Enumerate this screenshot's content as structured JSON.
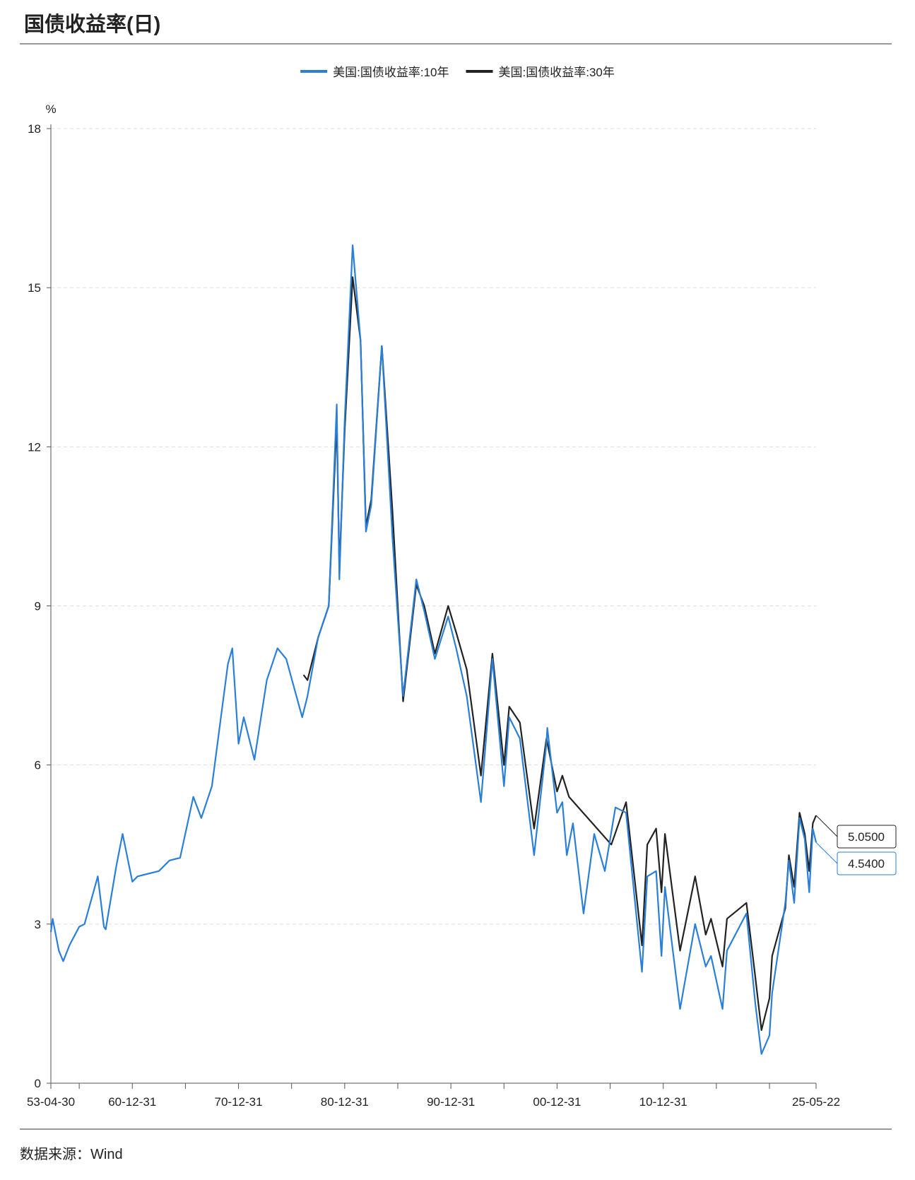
{
  "title": "国债收益率(日)",
  "source": "数据来源：Wind",
  "chart_data": {
    "type": "line",
    "y_label": "%",
    "xlim": [
      "53-04-30",
      "25-05-22"
    ],
    "ylim": [
      0,
      18
    ],
    "yticks": [
      0,
      3,
      6,
      9,
      12,
      15,
      18
    ],
    "grid": true,
    "xticks": [
      "53-04-30",
      {
        "value": "55-12-31",
        "label": null
      },
      "60-12-31",
      {
        "value": "65-12-31",
        "label": null
      },
      "70-12-31",
      {
        "value": "75-12-31",
        "label": null
      },
      "80-12-31",
      {
        "value": "85-12-31",
        "label": null
      },
      "90-12-31",
      {
        "value": "95-12-31",
        "label": null
      },
      "00-12-31",
      {
        "value": "05-12-31",
        "label": null
      },
      "10-12-31",
      {
        "value": "15-12-31",
        "label": null
      },
      {
        "value": "20-12-31",
        "label": null
      },
      "25-05-22"
    ],
    "series": [
      {
        "name": "美国:国债收益率:10年",
        "color": "#2a7fd8",
        "last_value_label": "4.5400",
        "x": [
          "53-04-30",
          "53-06-30",
          "54-01-31",
          "54-06-30",
          "55-01-31",
          "55-12-31",
          "56-06-30",
          "57-09-30",
          "58-04-30",
          "58-06-30",
          "59-06-30",
          "60-01-31",
          "60-12-31",
          "61-06-30",
          "62-06-30",
          "63-06-30",
          "64-06-30",
          "65-06-30",
          "66-09-30",
          "67-06-30",
          "68-06-30",
          "69-12-31",
          "70-05-31",
          "70-12-31",
          "71-06-30",
          "72-06-30",
          "73-08-31",
          "74-08-31",
          "75-06-30",
          "76-12-31",
          "77-06-30",
          "78-06-30",
          "79-06-30",
          "80-03-31",
          "80-06-30",
          "80-12-31",
          "81-09-30",
          "82-06-30",
          "82-12-31",
          "83-06-30",
          "84-06-30",
          "85-06-30",
          "86-06-30",
          "87-09-30",
          "88-06-30",
          "89-06-30",
          "90-09-30",
          "91-06-30",
          "92-06-30",
          "93-10-31",
          "94-11-30",
          "95-12-31",
          "96-06-30",
          "97-06-30",
          "98-10-31",
          "99-12-31",
          "00-01-31",
          "00-12-31",
          "01-06-30",
          "01-11-30",
          "02-06-30",
          "03-06-30",
          "04-06-30",
          "05-06-30",
          "06-06-30",
          "07-06-30",
          "08-12-31",
          "09-06-30",
          "10-04-30",
          "10-10-31",
          "11-02-28",
          "12-07-31",
          "13-12-31",
          "14-12-31",
          "15-06-30",
          "16-07-31",
          "16-12-31",
          "18-10-31",
          "19-08-31",
          "20-03-31",
          "20-12-31",
          "21-03-31",
          "22-06-30",
          "22-10-31",
          "23-04-30",
          "23-10-31",
          "24-04-30",
          "24-09-30",
          "25-01-31",
          "25-05-22"
        ],
        "values": [
          2.85,
          3.1,
          2.5,
          2.3,
          2.6,
          2.95,
          3.0,
          3.9,
          2.95,
          2.9,
          4.1,
          4.7,
          3.8,
          3.9,
          3.95,
          4.0,
          4.2,
          4.25,
          5.4,
          5.0,
          5.6,
          7.9,
          8.2,
          6.4,
          6.9,
          6.1,
          7.6,
          8.2,
          8.0,
          6.9,
          7.3,
          8.4,
          9.0,
          12.8,
          9.5,
          12.5,
          15.8,
          14.0,
          10.4,
          10.9,
          13.9,
          10.3,
          7.3,
          9.5,
          8.9,
          8.0,
          8.8,
          8.2,
          7.3,
          5.3,
          8.0,
          5.6,
          6.9,
          6.5,
          4.3,
          6.4,
          6.7,
          5.1,
          5.3,
          4.3,
          4.9,
          3.2,
          4.7,
          4.0,
          5.2,
          5.1,
          2.1,
          3.9,
          4.0,
          2.4,
          3.7,
          1.4,
          3.0,
          2.2,
          2.4,
          1.4,
          2.5,
          3.2,
          1.5,
          0.55,
          0.9,
          1.7,
          3.4,
          4.2,
          3.4,
          5.0,
          4.6,
          3.6,
          4.8,
          4.54
        ]
      },
      {
        "name": "美国:国债收益率:30年",
        "color": "#222222",
        "last_value_label": "5.0500",
        "x": [
          "77-02-15",
          "77-06-30",
          "78-06-30",
          "79-06-30",
          "80-03-31",
          "80-06-30",
          "80-12-31",
          "81-09-30",
          "82-06-30",
          "82-12-31",
          "83-06-30",
          "84-06-30",
          "85-06-30",
          "86-06-30",
          "87-09-30",
          "88-06-30",
          "89-06-30",
          "90-09-30",
          "91-06-30",
          "92-06-30",
          "93-10-31",
          "94-11-30",
          "95-12-31",
          "96-06-30",
          "97-06-30",
          "98-10-31",
          "99-12-31",
          "00-12-31",
          "01-06-30",
          "02-02-15",
          "06-02-09",
          "07-06-30",
          "08-12-31",
          "09-06-30",
          "10-04-30",
          "10-10-31",
          "11-02-28",
          "12-07-31",
          "13-12-31",
          "14-12-31",
          "15-06-30",
          "16-07-31",
          "16-12-31",
          "18-10-31",
          "19-08-31",
          "20-03-31",
          "20-12-31",
          "21-03-31",
          "22-06-30",
          "22-10-31",
          "23-04-30",
          "23-10-31",
          "24-04-30",
          "24-09-30",
          "25-01-31",
          "25-05-22"
        ],
        "values": [
          7.7,
          7.6,
          8.4,
          9.0,
          12.5,
          9.7,
          12.3,
          15.2,
          14.0,
          10.5,
          11.0,
          13.9,
          10.8,
          7.2,
          9.4,
          9.0,
          8.1,
          9.0,
          8.5,
          7.8,
          5.8,
          8.1,
          6.0,
          7.1,
          6.8,
          4.8,
          6.5,
          5.5,
          5.8,
          5.4,
          4.5,
          5.3,
          2.6,
          4.5,
          4.8,
          3.6,
          4.7,
          2.5,
          3.9,
          2.8,
          3.1,
          2.2,
          3.1,
          3.4,
          2.0,
          1.0,
          1.6,
          2.4,
          3.3,
          4.3,
          3.7,
          5.1,
          4.7,
          4.0,
          4.9,
          5.05
        ]
      }
    ]
  }
}
